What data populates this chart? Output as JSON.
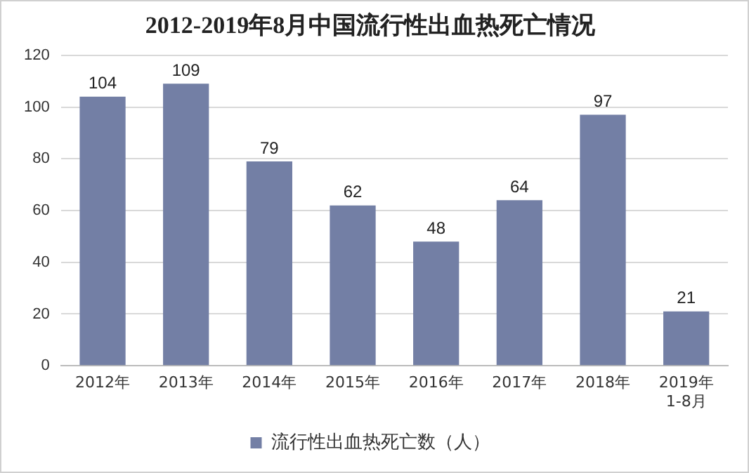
{
  "chart_data": {
    "type": "bar",
    "title": "2012-2019年8月中国流行性出血热死亡情况",
    "categories": [
      "2012年",
      "2013年",
      "2014年",
      "2015年",
      "2016年",
      "2017年",
      "2018年",
      "2019年\n1-8月"
    ],
    "series": [
      {
        "name": "流行性出血热死亡数（人）",
        "color": "#737fa5",
        "values": [
          104,
          109,
          79,
          62,
          48,
          64,
          97,
          21
        ]
      }
    ],
    "ylim": [
      0,
      120
    ],
    "yticks": [
      0,
      20,
      40,
      60,
      80,
      100,
      120
    ],
    "grid": "y",
    "legend": "bottom",
    "data_labels": true
  }
}
